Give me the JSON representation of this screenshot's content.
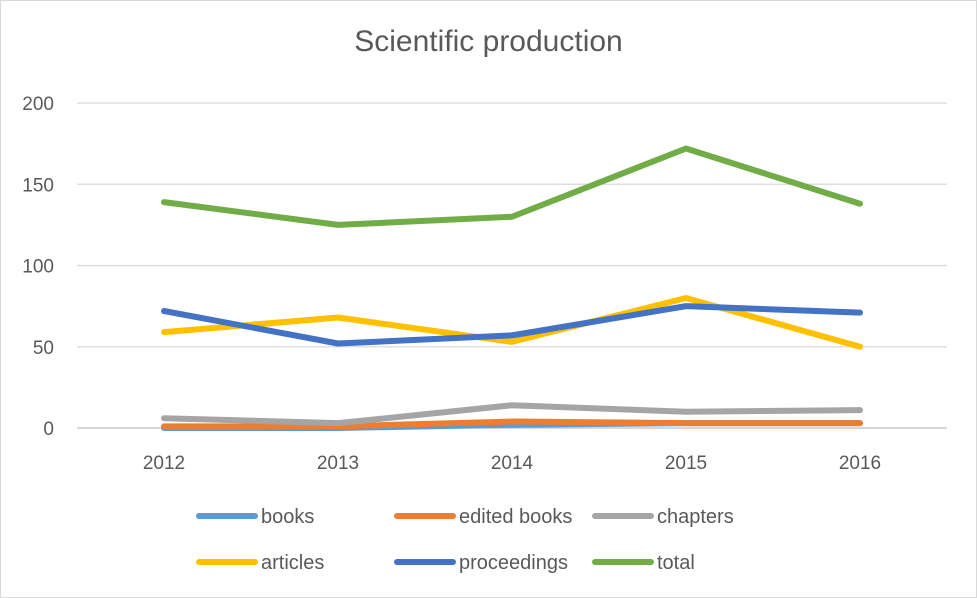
{
  "chart_data": {
    "type": "line",
    "title": "Scientific production",
    "xlabel": "",
    "ylabel": "",
    "categories": [
      "2012",
      "2013",
      "2014",
      "2015",
      "2016"
    ],
    "ylim": [
      0,
      200
    ],
    "yticks": [
      0,
      50,
      100,
      150,
      200
    ],
    "grid": "horizontal",
    "legend": "bottom",
    "series": [
      {
        "name": "books",
        "color": "#5b9bd5",
        "values": [
          0,
          0,
          2,
          3,
          3
        ]
      },
      {
        "name": "edited books",
        "color": "#ed7d31",
        "values": [
          1,
          1,
          4,
          3,
          3
        ]
      },
      {
        "name": "chapters",
        "color": "#a5a5a5",
        "values": [
          6,
          3,
          14,
          10,
          11
        ]
      },
      {
        "name": "articles",
        "color": "#ffc000",
        "values": [
          59,
          68,
          53,
          80,
          50
        ]
      },
      {
        "name": "proceedings",
        "color": "#4472c4",
        "values": [
          72,
          52,
          57,
          75,
          71
        ]
      },
      {
        "name": "total",
        "color": "#70ad47",
        "values": [
          139,
          125,
          130,
          172,
          138
        ]
      }
    ]
  }
}
